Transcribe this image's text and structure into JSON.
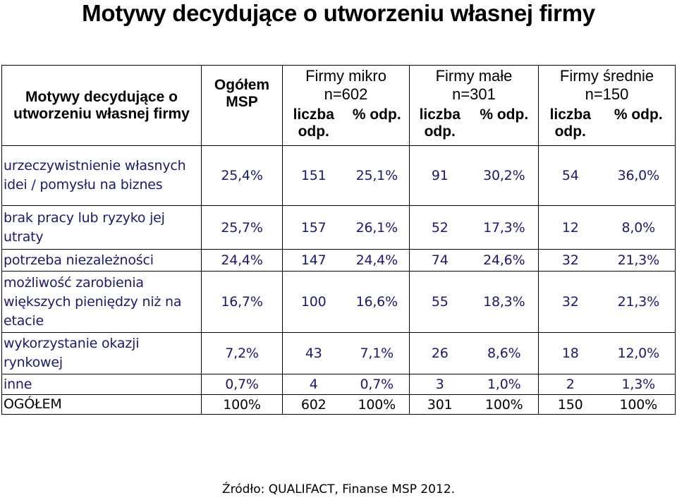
{
  "title": "Motywy decydujące o utworzeniu własnej firmy",
  "header": {
    "motive_col": "Motywy decydujące o utworzeniu własnej firmy",
    "total_col": "Ogółem MSP",
    "groups": [
      {
        "name": "Firmy mikro",
        "n": "n=602"
      },
      {
        "name": "Firmy małe",
        "n": "n=301"
      },
      {
        "name": "Firmy średnie",
        "n": "n=150"
      }
    ],
    "sub_count": "liczba odp.",
    "sub_pct": "% odp."
  },
  "rows": [
    {
      "label": "urzeczywistnienie własnych idei / pomysłu na biznes",
      "values": [
        "25,4%",
        "151",
        "25,1%",
        "91",
        "30,2%",
        "54",
        "36,0%"
      ]
    },
    {
      "label": "brak pracy lub ryzyko jej utraty",
      "values": [
        "25,7%",
        "157",
        "26,1%",
        "52",
        "17,3%",
        "12",
        "8,0%"
      ]
    },
    {
      "label": "potrzeba niezależności",
      "values": [
        "24,4%",
        "147",
        "24,4%",
        "74",
        "24,6%",
        "32",
        "21,3%"
      ]
    },
    {
      "label": "możliwość zarobienia większych pieniędzy niż na etacie",
      "values": [
        "16,7%",
        "100",
        "16,6%",
        "55",
        "18,3%",
        "32",
        "21,3%"
      ]
    },
    {
      "label": "wykorzystanie okazji rynkowej",
      "values": [
        "7,2%",
        "43",
        "7,1%",
        "26",
        "8,6%",
        "18",
        "12,0%"
      ]
    },
    {
      "label": "inne",
      "values": [
        "0,7%",
        "4",
        "0,7%",
        "3",
        "1,0%",
        "2",
        "1,3%"
      ]
    },
    {
      "label": "OGÓŁEM",
      "values": [
        "100%",
        "602",
        "100%",
        "301",
        "100%",
        "150",
        "100%"
      ]
    }
  ],
  "source": "Źródło: QUALIFACT, Finanse MSP 2012.",
  "colors": {
    "text_dark_blue": "#1a1a6e",
    "border": "#000000",
    "background": "#ffffff"
  }
}
